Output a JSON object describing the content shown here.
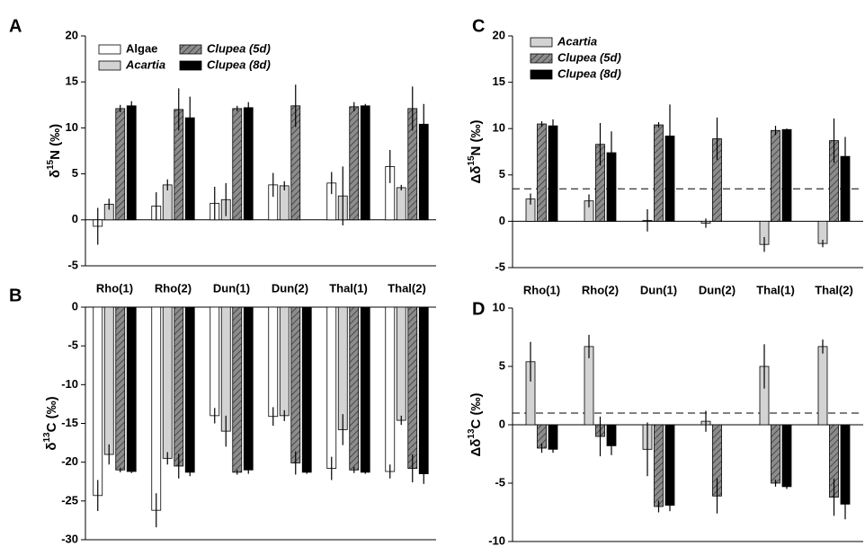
{
  "chart_data": [
    {
      "type": "bar",
      "panel": "A",
      "ylabel": [
        "δ",
        "15",
        "N (‰)"
      ],
      "categories": [
        "Rho(1)",
        "Rho(2)",
        "Dun(1)",
        "Dun(2)",
        "Thal(1)",
        "Thal(2)"
      ],
      "ylim": [
        -5,
        20
      ],
      "yticks": [
        -5,
        0,
        5,
        10,
        15,
        20
      ],
      "legend": {
        "position": "upper left",
        "columns": 2
      },
      "series": [
        {
          "name": "Algae",
          "color": "#ffffff",
          "italic": false,
          "values": [
            -0.7,
            1.5,
            1.8,
            3.8,
            4.0,
            5.8
          ],
          "errors": [
            2.0,
            1.5,
            1.8,
            1.3,
            1.2,
            1.8
          ]
        },
        {
          "name": "Acartia",
          "color": "#d3d3d3",
          "italic": true,
          "values": [
            1.7,
            3.8,
            2.2,
            3.7,
            2.6,
            3.5
          ],
          "errors": [
            0.6,
            0.6,
            1.8,
            0.5,
            3.2,
            0.3
          ]
        },
        {
          "name": "Clupea (5d)",
          "color": "#8c8c8c",
          "hatch": true,
          "italic": true,
          "values": [
            12.1,
            12.0,
            12.1,
            12.4,
            12.3,
            12.1
          ],
          "errors": [
            0.4,
            2.3,
            0.3,
            2.3,
            0.5,
            2.4
          ]
        },
        {
          "name": "Clupea (8d)",
          "color": "#000000",
          "italic": true,
          "values": [
            12.4,
            11.1,
            12.2,
            null,
            12.4,
            10.4
          ],
          "errors": [
            0.5,
            2.3,
            0.6,
            null,
            0.2,
            2.2
          ]
        }
      ]
    },
    {
      "type": "bar",
      "panel": "B",
      "ylabel": [
        "δ",
        "13",
        "C (‰)"
      ],
      "categories": [
        null,
        null,
        null,
        null,
        null,
        null
      ],
      "ylim": [
        -30,
        0
      ],
      "yticks": [
        -30,
        -25,
        -20,
        -15,
        -10,
        -5,
        0
      ],
      "series": [
        {
          "color": "#ffffff",
          "values": [
            -24.3,
            -26.2,
            -14.0,
            -14.1,
            -20.8,
            -21.2
          ],
          "errors": [
            2.0,
            2.2,
            1.0,
            1.2,
            1.5,
            0.9
          ]
        },
        {
          "color": "#d3d3d3",
          "values": [
            -19.0,
            -19.5,
            -16.0,
            -14.0,
            -15.8,
            -14.6
          ],
          "errors": [
            1.3,
            0.8,
            2.0,
            0.7,
            2.0,
            0.6
          ]
        },
        {
          "color": "#8c8c8c",
          "hatch": true,
          "values": [
            -21.0,
            -20.5,
            -21.3,
            -20.1,
            -21.0,
            -20.8
          ],
          "errors": [
            0.3,
            1.6,
            0.3,
            1.5,
            0.4,
            1.8
          ]
        },
        {
          "color": "#000000",
          "values": [
            -21.2,
            -21.3,
            -21.0,
            -21.3,
            -21.3,
            -21.5
          ],
          "errors": [
            0.2,
            0.5,
            0.5,
            0.2,
            0.2,
            1.3
          ]
        }
      ]
    },
    {
      "type": "bar",
      "panel": "C",
      "ylabel": [
        "Δδ",
        "15",
        "N (‰)"
      ],
      "categories": [
        "Rho(1)",
        "Rho(2)",
        "Dun(1)",
        "Dun(2)",
        "Thal(1)",
        "Thal(2)"
      ],
      "ylim": [
        -5,
        20
      ],
      "yticks": [
        -5,
        0,
        5,
        10,
        15,
        20
      ],
      "reference_line": 3.5,
      "legend": {
        "position": "upper left",
        "columns": 1
      },
      "series": [
        {
          "name": "Acartia",
          "color": "#d3d3d3",
          "italic": true,
          "values": [
            2.4,
            2.2,
            0.1,
            -0.2,
            -2.5,
            -2.4
          ],
          "errors": [
            0.6,
            0.7,
            1.2,
            0.5,
            0.8,
            0.4
          ]
        },
        {
          "name": "Clupea (5d)",
          "color": "#8c8c8c",
          "hatch": true,
          "italic": true,
          "values": [
            10.5,
            8.3,
            10.4,
            8.9,
            9.8,
            8.7
          ],
          "errors": [
            0.3,
            2.3,
            0.3,
            2.3,
            0.5,
            2.4
          ]
        },
        {
          "name": "Clupea (8d)",
          "color": "#000000",
          "italic": true,
          "values": [
            10.3,
            7.4,
            9.2,
            null,
            9.9,
            7.0
          ],
          "errors": [
            0.7,
            2.3,
            3.4,
            null,
            0.1,
            2.1
          ]
        }
      ]
    },
    {
      "type": "bar",
      "panel": "D",
      "ylabel": [
        "Δδ",
        "13",
        "C (‰)"
      ],
      "categories": [
        null,
        null,
        null,
        null,
        null,
        null
      ],
      "ylim": [
        -10,
        10
      ],
      "yticks": [
        -10,
        -5,
        0,
        5,
        10
      ],
      "reference_line": 1,
      "series": [
        {
          "color": "#d3d3d3",
          "values": [
            5.4,
            6.7,
            -2.1,
            0.3,
            5.0,
            6.7
          ],
          "errors": [
            1.7,
            1.0,
            2.3,
            0.9,
            1.9,
            0.6
          ]
        },
        {
          "color": "#8c8c8c",
          "hatch": true,
          "values": [
            -2.0,
            -1.0,
            -7.0,
            -6.1,
            -5.0,
            -6.2
          ],
          "errors": [
            0.4,
            1.7,
            0.5,
            1.5,
            0.3,
            1.6
          ]
        },
        {
          "color": "#000000",
          "values": [
            -2.1,
            -1.8,
            -6.9,
            null,
            -5.3,
            -6.8
          ],
          "errors": [
            0.3,
            0.8,
            0.5,
            null,
            0.2,
            1.3
          ]
        }
      ]
    }
  ]
}
